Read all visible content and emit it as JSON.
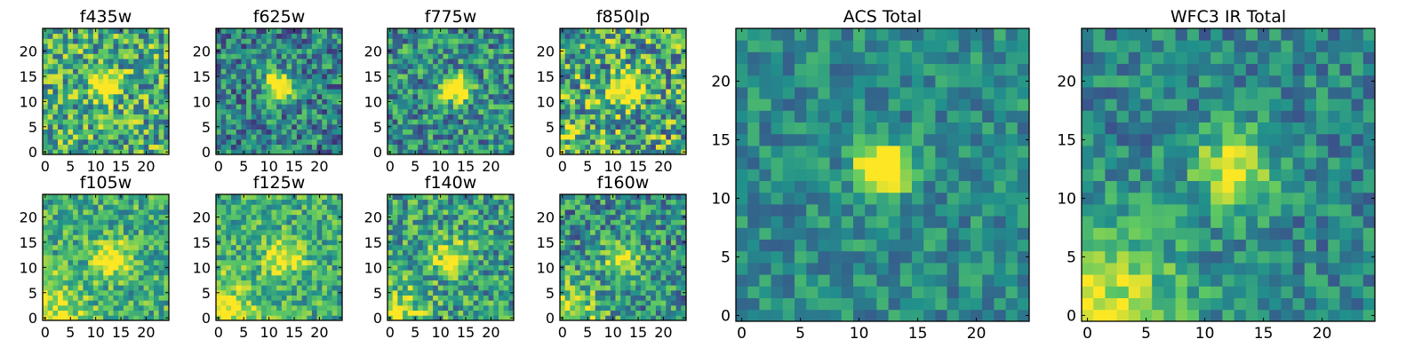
{
  "figure": {
    "description_note": "Image cutouts of a faint source in multiple HST filters",
    "colormap": [
      "#440154",
      "#3b528b",
      "#21918c",
      "#5ec962",
      "#fde725"
    ]
  },
  "chart_data": [
    {
      "type": "heatmap",
      "title": "f435w",
      "grid_size": 25,
      "xlim": [
        0,
        24
      ],
      "ylim": [
        0,
        24
      ],
      "xticks": [
        0,
        5,
        10,
        15,
        20
      ],
      "yticks": [
        0,
        5,
        10,
        15,
        20
      ],
      "source": {
        "x": 12,
        "y": 13,
        "sigma": 1.8,
        "peak": 0.85
      },
      "noise": 0.35,
      "background": 0.62,
      "slope": 0.0
    },
    {
      "type": "heatmap",
      "title": "f625w",
      "grid_size": 25,
      "xlim": [
        0,
        24
      ],
      "ylim": [
        0,
        24
      ],
      "xticks": [
        0,
        5,
        10,
        15,
        20
      ],
      "yticks": [
        0,
        5,
        10,
        15,
        20
      ],
      "source": {
        "x": 12,
        "y": 13,
        "sigma": 1.8,
        "peak": 0.9
      },
      "noise": 0.3,
      "background": 0.45,
      "slope": 0.0
    },
    {
      "type": "heatmap",
      "title": "f775w",
      "grid_size": 25,
      "xlim": [
        0,
        24
      ],
      "ylim": [
        0,
        24
      ],
      "xticks": [
        0,
        5,
        10,
        15,
        20
      ],
      "yticks": [
        0,
        5,
        10,
        15,
        20
      ],
      "source": {
        "x": 13,
        "y": 12.5,
        "sigma": 1.8,
        "peak": 0.85
      },
      "noise": 0.3,
      "background": 0.5,
      "slope": 0.0
    },
    {
      "type": "heatmap",
      "title": "f850lp",
      "grid_size": 25,
      "xlim": [
        0,
        24
      ],
      "ylim": [
        0,
        24
      ],
      "xticks": [
        0,
        5,
        10,
        15,
        20
      ],
      "yticks": [
        0,
        5,
        10,
        15,
        20
      ],
      "source": {
        "x": 12,
        "y": 12,
        "sigma": 2.2,
        "peak": 0.6
      },
      "noise": 0.4,
      "background": 0.6,
      "slope": 0.15
    },
    {
      "type": "heatmap",
      "title": "f105w",
      "grid_size": 25,
      "xlim": [
        0,
        24
      ],
      "ylim": [
        0,
        24
      ],
      "xticks": [
        0,
        5,
        10,
        15,
        20
      ],
      "yticks": [
        0,
        5,
        10,
        15,
        20
      ],
      "source": {
        "x": 13,
        "y": 12,
        "sigma": 2.5,
        "peak": 0.5
      },
      "noise": 0.25,
      "background": 0.62,
      "slope": 0.35
    },
    {
      "type": "heatmap",
      "title": "f125w",
      "grid_size": 25,
      "xlim": [
        0,
        24
      ],
      "ylim": [
        0,
        24
      ],
      "xticks": [
        0,
        5,
        10,
        15,
        20
      ],
      "yticks": [
        0,
        5,
        10,
        15,
        20
      ],
      "source": {
        "x": 13,
        "y": 12,
        "sigma": 2.5,
        "peak": 0.5
      },
      "noise": 0.25,
      "background": 0.62,
      "slope": 0.4
    },
    {
      "type": "heatmap",
      "title": "f140w",
      "grid_size": 25,
      "xlim": [
        0,
        24
      ],
      "ylim": [
        0,
        24
      ],
      "xticks": [
        0,
        5,
        10,
        15,
        20
      ],
      "yticks": [
        0,
        5,
        10,
        15,
        20
      ],
      "source": {
        "x": 12,
        "y": 12,
        "sigma": 2.5,
        "peak": 0.45
      },
      "noise": 0.3,
      "background": 0.55,
      "slope": 0.35
    },
    {
      "type": "heatmap",
      "title": "f160w",
      "grid_size": 25,
      "xlim": [
        0,
        24
      ],
      "ylim": [
        0,
        24
      ],
      "xticks": [
        0,
        5,
        10,
        15,
        20
      ],
      "yticks": [
        0,
        5,
        10,
        15,
        20
      ],
      "source": {
        "x": 12,
        "y": 12,
        "sigma": 2.5,
        "peak": 0.5
      },
      "noise": 0.3,
      "background": 0.5,
      "slope": 0.45
    },
    {
      "type": "heatmap",
      "title": "ACS Total",
      "grid_size": 25,
      "xlim": [
        0,
        24
      ],
      "ylim": [
        0,
        24
      ],
      "xticks": [
        0,
        5,
        10,
        15,
        20
      ],
      "yticks": [
        0,
        5,
        10,
        15,
        20
      ],
      "source": {
        "x": 12,
        "y": 12.5,
        "sigma": 1.6,
        "peak": 0.75
      },
      "noise": 0.18,
      "background": 0.48,
      "slope": 0.0
    },
    {
      "type": "heatmap",
      "title": "WFC3 IR Total",
      "grid_size": 25,
      "xlim": [
        0,
        24
      ],
      "ylim": [
        0,
        24
      ],
      "xticks": [
        0,
        5,
        10,
        15,
        20
      ],
      "yticks": [
        0,
        5,
        10,
        15,
        20
      ],
      "source": {
        "x": 12.5,
        "y": 12.5,
        "sigma": 2.3,
        "peak": 0.55
      },
      "noise": 0.2,
      "background": 0.45,
      "slope": 0.55
    }
  ]
}
